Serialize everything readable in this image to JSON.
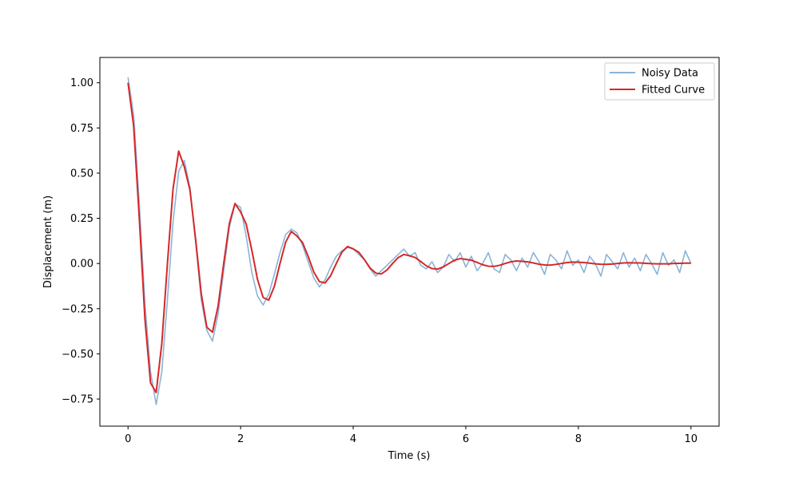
{
  "chart_data": {
    "type": "line",
    "title": "",
    "xlabel": "Time (s)",
    "ylabel": "Displacement (m)",
    "xlim": [
      -0.5,
      10.5
    ],
    "ylim": [
      -0.9,
      1.14
    ],
    "xticks": [
      0,
      2,
      4,
      6,
      8,
      10
    ],
    "xtick_labels": [
      "0",
      "2",
      "4",
      "6",
      "8",
      "10"
    ],
    "yticks": [
      -0.75,
      -0.5,
      -0.25,
      0.0,
      0.25,
      0.5,
      0.75,
      1.0
    ],
    "ytick_labels": [
      "−0.75",
      "−0.50",
      "−0.25",
      "0.00",
      "0.25",
      "0.50",
      "0.75",
      "1.00"
    ],
    "grid": false,
    "legend_position": "top-right",
    "series": [
      {
        "name": "Noisy Data",
        "color": "#8ab4d6",
        "x": [
          0.0,
          0.1,
          0.2,
          0.3,
          0.4,
          0.5,
          0.6,
          0.7,
          0.8,
          0.9,
          1.0,
          1.1,
          1.2,
          1.3,
          1.4,
          1.5,
          1.6,
          1.7,
          1.8,
          1.9,
          2.0,
          2.1,
          2.2,
          2.3,
          2.4,
          2.5,
          2.6,
          2.7,
          2.8,
          2.9,
          3.0,
          3.1,
          3.2,
          3.3,
          3.4,
          3.5,
          3.6,
          3.7,
          3.8,
          3.9,
          4.0,
          4.1,
          4.2,
          4.3,
          4.4,
          4.5,
          4.6,
          4.7,
          4.8,
          4.9,
          5.0,
          5.1,
          5.2,
          5.3,
          5.4,
          5.5,
          5.6,
          5.7,
          5.8,
          5.9,
          6.0,
          6.1,
          6.2,
          6.3,
          6.4,
          6.5,
          6.6,
          6.7,
          6.8,
          6.9,
          7.0,
          7.1,
          7.2,
          7.3,
          7.4,
          7.5,
          7.6,
          7.7,
          7.8,
          7.9,
          8.0,
          8.1,
          8.2,
          8.3,
          8.4,
          8.5,
          8.6,
          8.7,
          8.8,
          8.9,
          9.0,
          9.1,
          9.2,
          9.3,
          9.4,
          9.5,
          9.6,
          9.7,
          9.8,
          9.9,
          10.0
        ],
        "values": [
          1.03,
          0.82,
          0.33,
          -0.22,
          -0.6,
          -0.78,
          -0.6,
          -0.2,
          0.23,
          0.51,
          0.57,
          0.42,
          0.12,
          -0.2,
          -0.37,
          -0.43,
          -0.28,
          -0.04,
          0.2,
          0.33,
          0.31,
          0.15,
          -0.05,
          -0.18,
          -0.23,
          -0.17,
          -0.06,
          0.06,
          0.16,
          0.19,
          0.17,
          0.1,
          0.01,
          -0.08,
          -0.13,
          -0.09,
          -0.02,
          0.04,
          0.07,
          0.09,
          0.08,
          0.05,
          0.02,
          -0.03,
          -0.07,
          -0.04,
          -0.01,
          0.02,
          0.05,
          0.08,
          0.04,
          0.06,
          -0.01,
          -0.03,
          0.01,
          -0.05,
          -0.02,
          0.05,
          0.01,
          0.06,
          -0.02,
          0.04,
          -0.04,
          0.0,
          0.06,
          -0.03,
          -0.05,
          0.05,
          0.02,
          -0.04,
          0.03,
          -0.02,
          0.06,
          0.01,
          -0.06,
          0.05,
          0.02,
          -0.03,
          0.07,
          -0.01,
          0.02,
          -0.05,
          0.04,
          0.0,
          -0.07,
          0.05,
          0.01,
          -0.03,
          0.06,
          -0.02,
          0.03,
          -0.04,
          0.05,
          0.0,
          -0.06,
          0.06,
          -0.01,
          0.02,
          -0.05,
          0.07,
          0.0
        ]
      },
      {
        "name": "Fitted Curve",
        "color": "#d62728",
        "x": [
          0.0,
          0.1,
          0.2,
          0.3,
          0.4,
          0.5,
          0.6,
          0.7,
          0.8,
          0.9,
          1.0,
          1.1,
          1.2,
          1.3,
          1.4,
          1.5,
          1.6,
          1.7,
          1.8,
          1.9,
          2.0,
          2.1,
          2.2,
          2.3,
          2.4,
          2.5,
          2.6,
          2.7,
          2.8,
          2.9,
          3.0,
          3.1,
          3.2,
          3.3,
          3.4,
          3.5,
          3.6,
          3.7,
          3.8,
          3.9,
          4.0,
          4.1,
          4.2,
          4.3,
          4.4,
          4.5,
          4.6,
          4.7,
          4.8,
          4.9,
          5.0,
          5.1,
          5.2,
          5.3,
          5.4,
          5.5,
          5.6,
          5.7,
          5.8,
          5.9,
          6.0,
          6.1,
          6.2,
          6.3,
          6.4,
          6.5,
          6.6,
          6.7,
          6.8,
          6.9,
          7.0,
          7.1,
          7.2,
          7.3,
          7.4,
          7.5,
          7.6,
          7.7,
          7.8,
          7.9,
          8.0,
          8.1,
          8.2,
          8.3,
          8.4,
          8.5,
          8.6,
          8.7,
          8.8,
          8.9,
          9.0,
          9.1,
          9.2,
          9.3,
          9.4,
          9.5,
          9.6,
          9.7,
          9.8,
          9.9,
          10.0
        ],
        "values": [
          1.0,
          0.761,
          0.252,
          -0.306,
          -0.661,
          -0.714,
          -0.443,
          0.0,
          0.414,
          0.622,
          0.535,
          0.407,
          0.136,
          -0.165,
          -0.353,
          -0.38,
          -0.236,
          0.0,
          0.221,
          0.332,
          0.285,
          0.217,
          0.072,
          -0.088,
          -0.188,
          -0.203,
          -0.126,
          0.0,
          0.118,
          0.177,
          0.152,
          0.116,
          0.039,
          -0.047,
          -0.1,
          -0.108,
          -0.067,
          0.0,
          0.063,
          0.094,
          0.081,
          0.062,
          0.021,
          -0.025,
          -0.053,
          -0.058,
          -0.036,
          0.0,
          0.033,
          0.05,
          0.043,
          0.033,
          0.011,
          -0.013,
          -0.028,
          -0.031,
          -0.019,
          0.0,
          0.018,
          0.027,
          0.023,
          0.018,
          0.006,
          -0.007,
          -0.015,
          -0.016,
          -0.01,
          0.0,
          0.009,
          0.014,
          0.012,
          0.009,
          0.003,
          -0.004,
          -0.008,
          -0.009,
          -0.005,
          0.0,
          0.005,
          0.008,
          0.007,
          0.005,
          0.002,
          -0.002,
          -0.004,
          -0.005,
          -0.003,
          0.0,
          0.003,
          0.004,
          0.003,
          0.003,
          0.001,
          -0.001,
          -0.002,
          -0.002,
          -0.002,
          0.0,
          0.001,
          0.002,
          0.002
        ]
      }
    ]
  }
}
